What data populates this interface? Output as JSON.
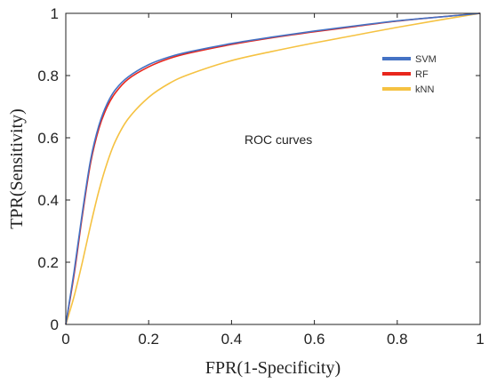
{
  "chart_data": {
    "type": "line",
    "title": "",
    "xlabel": "FPR(1-Specificity)",
    "ylabel": "TPR(Sensitivity)",
    "xlim": [
      0,
      1
    ],
    "ylim": [
      0,
      1
    ],
    "xticks": [
      "0",
      "0.2",
      "0.4",
      "0.6",
      "0.8",
      "1"
    ],
    "yticks": [
      "0",
      "0.2",
      "0.4",
      "0.6",
      "0.8",
      "1"
    ],
    "grid": false,
    "legend_position": "top-right",
    "annotation": "ROC curves",
    "series": [
      {
        "name": "SVM",
        "color": "#4472C4",
        "x": [
          0,
          0.02,
          0.04,
          0.06,
          0.08,
          0.1,
          0.12,
          0.15,
          0.2,
          0.25,
          0.3,
          0.4,
          0.5,
          0.6,
          0.7,
          0.8,
          0.9,
          1.0
        ],
        "y": [
          0,
          0.17,
          0.36,
          0.53,
          0.64,
          0.71,
          0.755,
          0.795,
          0.835,
          0.86,
          0.877,
          0.903,
          0.924,
          0.943,
          0.96,
          0.976,
          0.988,
          1.0
        ]
      },
      {
        "name": "RF",
        "color": "#E8261C",
        "x": [
          0,
          0.02,
          0.04,
          0.06,
          0.08,
          0.1,
          0.12,
          0.15,
          0.2,
          0.25,
          0.3,
          0.4,
          0.5,
          0.6,
          0.7,
          0.8,
          0.9,
          1.0
        ],
        "y": [
          0,
          0.16,
          0.35,
          0.52,
          0.63,
          0.7,
          0.745,
          0.788,
          0.828,
          0.855,
          0.873,
          0.9,
          0.922,
          0.941,
          0.958,
          0.975,
          0.988,
          1.0
        ]
      },
      {
        "name": "kNN",
        "color": "#F5C242",
        "x": [
          0,
          0.02,
          0.04,
          0.06,
          0.08,
          0.1,
          0.12,
          0.15,
          0.2,
          0.25,
          0.3,
          0.4,
          0.5,
          0.6,
          0.7,
          0.8,
          0.9,
          1.0
        ],
        "y": [
          0,
          0.09,
          0.2,
          0.32,
          0.43,
          0.52,
          0.59,
          0.66,
          0.73,
          0.775,
          0.805,
          0.848,
          0.878,
          0.905,
          0.93,
          0.955,
          0.978,
          1.0
        ]
      }
    ]
  }
}
